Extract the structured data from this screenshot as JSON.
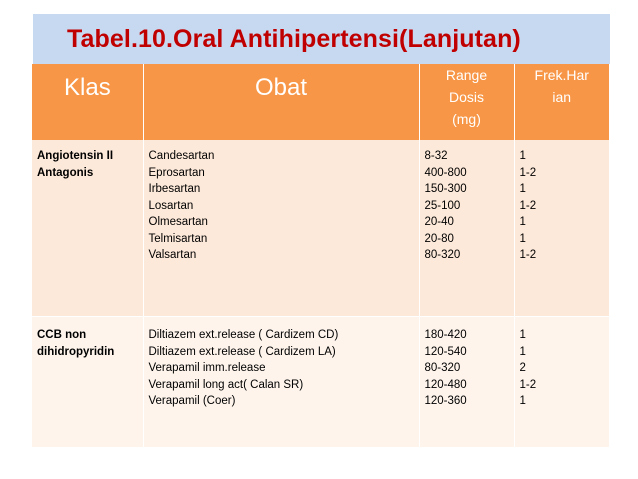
{
  "title": "Tabel.10.Oral Antihipertensi(Lanjutan)",
  "headers": {
    "klas": "Klas",
    "obat": "Obat",
    "range_lines": [
      "Range",
      "Dosis",
      "(mg)"
    ],
    "frek_lines": [
      "Frek.Har",
      "ian"
    ]
  },
  "rows": [
    {
      "klas": [
        "Angiotensin II",
        "Antagonis"
      ],
      "obat": [
        "Candesartan",
        "Eprosartan",
        "Irbesartan",
        "Losartan",
        "Olmesartan",
        "Telmisartan",
        "Valsartan"
      ],
      "range": [
        "8-32",
        "400-800",
        "150-300",
        "25-100",
        "20-40",
        "20-80",
        "80-320"
      ],
      "frek": [
        "1",
        "1-2",
        "1",
        "1-2",
        "1",
        "1",
        "1-2"
      ]
    },
    {
      "klas": [
        "CCB non",
        "dihidropyridin"
      ],
      "obat": [
        "Diltiazem ext.release ( Cardizem CD)",
        "Diltiazem ext.release ( Cardizem LA)",
        "Verapamil imm.release",
        "Verapamil long act( Calan SR)",
        "Verapamil (Coer)"
      ],
      "range": [
        "180-420",
        "120-540",
        "80-320",
        "120-480",
        "120-360"
      ],
      "frek": [
        "1",
        "1",
        "2",
        "1-2",
        "1"
      ]
    }
  ]
}
